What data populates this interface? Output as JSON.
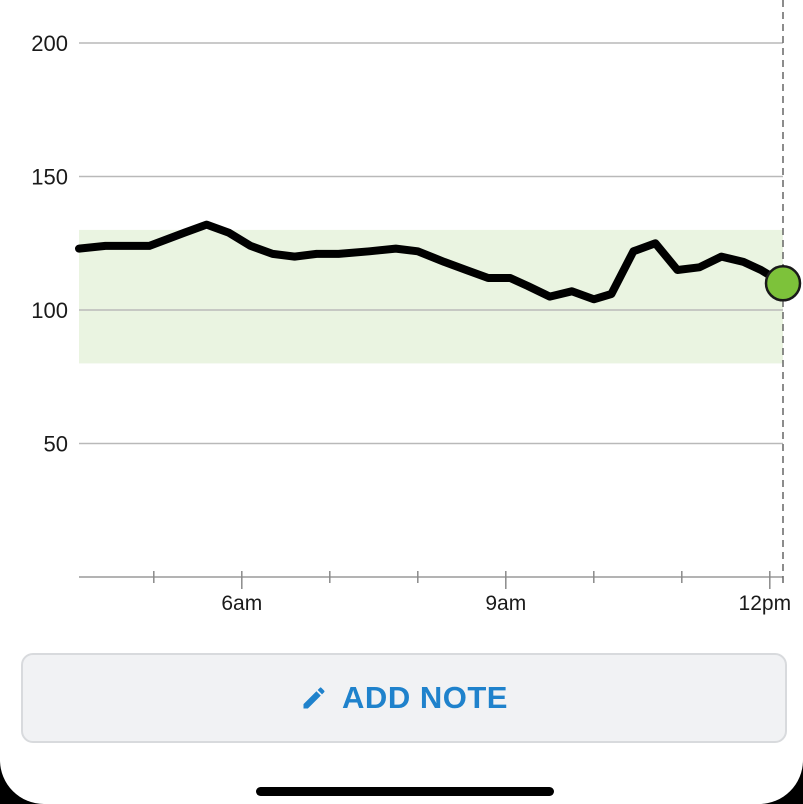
{
  "chart_data": {
    "type": "line",
    "y_ticks": [
      "200",
      "150",
      "100",
      "50"
    ],
    "y_tick_values": [
      200,
      150,
      100,
      50
    ],
    "ylim": [
      0,
      200
    ],
    "x_tick_labels": [
      "6am",
      "9am",
      "12pm"
    ],
    "x_tick_hours": [
      6,
      9,
      12
    ],
    "xlim_hours": [
      4.15,
      12.15
    ],
    "target_range": [
      80,
      130
    ],
    "now_marker_hour": 12.15,
    "series": [
      {
        "x": [
          4.15,
          4.45,
          4.95,
          5.35,
          5.6,
          5.85,
          6.1,
          6.35,
          6.6,
          6.85,
          7.1,
          7.45,
          7.75,
          8.0,
          8.3,
          8.55,
          8.8,
          9.05,
          9.25,
          9.5,
          9.75,
          10.0,
          10.2,
          10.45,
          10.7,
          10.95,
          11.2,
          11.45,
          11.7,
          11.9,
          12.15
        ],
        "y": [
          123,
          124,
          124,
          129,
          132,
          129,
          124,
          121,
          120,
          121,
          121,
          122,
          123,
          122,
          118,
          115,
          112,
          112,
          109,
          105,
          107,
          104,
          106,
          122,
          125,
          115,
          116,
          120,
          118,
          115,
          110
        ],
        "color": "#000000"
      }
    ],
    "current_point": {
      "x": 12.15,
      "y": 110,
      "color": "#7dc23a"
    },
    "grid": true,
    "target_fill": "#eaf4e1"
  },
  "actions": {
    "add_note_label": "ADD NOTE",
    "add_note_icon": "pencil-icon",
    "accent": "#1f82cc"
  }
}
